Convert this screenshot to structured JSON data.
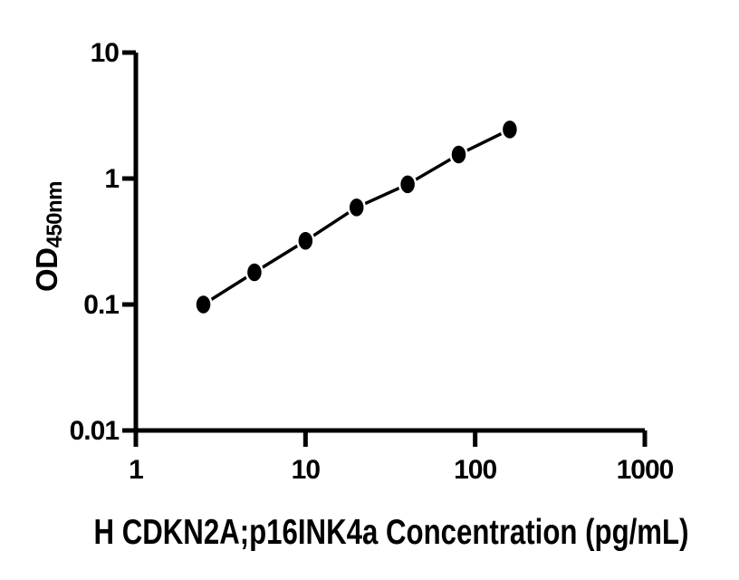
{
  "figure": {
    "background": "#ffffff",
    "axis_color": "#000000",
    "text_color": "#000000"
  },
  "chart_data": {
    "type": "scatter",
    "title": "",
    "x": [
      2.5,
      5,
      10,
      20,
      40,
      80,
      160
    ],
    "y": [
      0.1,
      0.18,
      0.32,
      0.59,
      0.9,
      1.55,
      2.45
    ],
    "xlabel": "H CDKN2A;p16INK4a Concentration (pg/mL)",
    "ylabel": "OD450nm",
    "ylabel_main": "OD",
    "ylabel_sub": "450nm",
    "x_scale": "log",
    "y_scale": "log",
    "xlim": [
      1,
      1000
    ],
    "ylim": [
      0.01,
      10
    ],
    "x_ticks": [
      1,
      10,
      100,
      1000
    ],
    "x_tick_labels": [
      "1",
      "10",
      "100",
      "1000"
    ],
    "y_ticks": [
      0.01,
      0.1,
      1,
      10
    ],
    "y_tick_labels": [
      "0.01",
      "0.1",
      "1",
      "10"
    ],
    "grid": false,
    "legend": "none",
    "line_color": "#000000",
    "marker_color": "#000000",
    "marker_halo_color": "#ffffff"
  }
}
